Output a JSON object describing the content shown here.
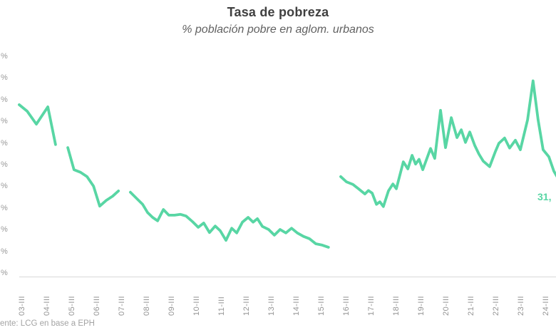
{
  "header": {
    "title": "Tasa de pobreza",
    "subtitle": "% población pobre en aglom. urbanos"
  },
  "annotations": {
    "end_label": "31,"
  },
  "footer": {
    "source": "ente: LCG en base a EPH"
  },
  "colors": {
    "line": "#58d6a4",
    "title_text": "#404040",
    "subtitle_text": "#616161",
    "axis_text": "#969696",
    "baseline": "#e2e2e2"
  },
  "chart_data": {
    "type": "line",
    "title": "Tasa de pobreza",
    "subtitle": "% población pobre en aglom. urbanos",
    "legend": "none",
    "grid": "off",
    "ylabel": "",
    "xlabel": "",
    "ylim": [
      9,
      60
    ],
    "y_tick_labels": [
      "%",
      "%",
      "%",
      "%",
      "%",
      "%",
      "%",
      "%",
      "%",
      "%",
      "%"
    ],
    "x_tick_labels": [
      "03-III",
      "04-III",
      "05-III",
      "06-III",
      "07-III",
      "08-III",
      "09-III",
      "10-III",
      "11-III",
      "12-III",
      "13-III",
      "14-III",
      "15-III",
      "16-III",
      "17-III",
      "18-III",
      "19-III",
      "20-III",
      "21-III",
      "22-III",
      "23-III",
      "24-III"
    ],
    "end_label": "31,",
    "series": [
      {
        "name": "Tasa de pobreza (% población pobre en aglomerados urbanos)",
        "unit": "%",
        "note": "x = year (decimal, quarterly EPH); gaps where no data published",
        "segments": [
          [
            [
              2003.41,
              49.0
            ],
            [
              2003.73,
              47.5
            ],
            [
              2004.1,
              44.5
            ],
            [
              2004.56,
              48.5
            ],
            [
              2004.87,
              39.8
            ]
          ],
          [
            [
              2005.36,
              39.1
            ],
            [
              2005.61,
              34.0
            ],
            [
              2005.87,
              33.4
            ],
            [
              2006.13,
              32.4
            ],
            [
              2006.39,
              30.2
            ],
            [
              2006.64,
              25.6
            ],
            [
              2006.9,
              26.9
            ],
            [
              2007.16,
              27.9
            ],
            [
              2007.39,
              29.1
            ]
          ],
          [
            [
              2007.87,
              28.8
            ],
            [
              2008.13,
              27.3
            ],
            [
              2008.36,
              26.0
            ],
            [
              2008.56,
              24.1
            ],
            [
              2008.76,
              23.0
            ],
            [
              2008.96,
              22.2
            ],
            [
              2009.19,
              24.8
            ],
            [
              2009.41,
              23.5
            ],
            [
              2009.64,
              23.5
            ],
            [
              2009.87,
              23.7
            ],
            [
              2010.1,
              23.3
            ],
            [
              2010.36,
              22.0
            ],
            [
              2010.59,
              20.7
            ],
            [
              2010.81,
              21.7
            ],
            [
              2011.04,
              19.5
            ],
            [
              2011.27,
              21.0
            ],
            [
              2011.47,
              19.9
            ],
            [
              2011.7,
              17.7
            ],
            [
              2011.93,
              20.5
            ],
            [
              2012.13,
              19.4
            ],
            [
              2012.36,
              21.9
            ],
            [
              2012.59,
              23.0
            ],
            [
              2012.79,
              21.9
            ],
            [
              2012.96,
              22.7
            ],
            [
              2013.16,
              20.9
            ],
            [
              2013.41,
              20.2
            ],
            [
              2013.64,
              18.9
            ],
            [
              2013.87,
              20.2
            ],
            [
              2014.1,
              19.4
            ],
            [
              2014.33,
              20.5
            ],
            [
              2014.56,
              19.4
            ],
            [
              2014.81,
              18.6
            ],
            [
              2015.04,
              18.1
            ],
            [
              2015.3,
              16.9
            ],
            [
              2015.56,
              16.6
            ],
            [
              2015.81,
              16.1
            ]
          ],
          [
            [
              2016.3,
              32.4
            ],
            [
              2016.53,
              31.2
            ],
            [
              2016.79,
              30.6
            ],
            [
              2017.01,
              29.6
            ],
            [
              2017.27,
              28.4
            ],
            [
              2017.41,
              29.2
            ],
            [
              2017.56,
              28.6
            ],
            [
              2017.73,
              26.0
            ],
            [
              2017.87,
              26.6
            ],
            [
              2018.01,
              25.5
            ],
            [
              2018.21,
              29.1
            ],
            [
              2018.39,
              30.7
            ],
            [
              2018.53,
              29.6
            ],
            [
              2018.81,
              35.8
            ],
            [
              2018.99,
              34.2
            ],
            [
              2019.16,
              37.3
            ],
            [
              2019.3,
              35.3
            ],
            [
              2019.44,
              36.4
            ],
            [
              2019.59,
              34.0
            ],
            [
              2019.9,
              38.9
            ],
            [
              2020.07,
              36.6
            ],
            [
              2020.3,
              47.7
            ],
            [
              2020.5,
              39.1
            ],
            [
              2020.73,
              46.0
            ],
            [
              2020.96,
              41.4
            ],
            [
              2021.13,
              43.2
            ],
            [
              2021.3,
              40.3
            ],
            [
              2021.47,
              42.7
            ],
            [
              2021.67,
              39.6
            ],
            [
              2021.84,
              37.6
            ],
            [
              2022.01,
              36.0
            ],
            [
              2022.27,
              34.7
            ],
            [
              2022.5,
              38.2
            ],
            [
              2022.64,
              40.1
            ],
            [
              2022.87,
              41.3
            ],
            [
              2023.07,
              39.0
            ],
            [
              2023.3,
              40.8
            ],
            [
              2023.5,
              38.6
            ],
            [
              2023.79,
              45.5
            ],
            [
              2024.01,
              54.5
            ],
            [
              2024.21,
              45.5
            ],
            [
              2024.41,
              38.6
            ],
            [
              2024.64,
              37.0
            ],
            [
              2024.84,
              33.7
            ],
            [
              2025.07,
              31.4
            ]
          ]
        ]
      }
    ]
  }
}
